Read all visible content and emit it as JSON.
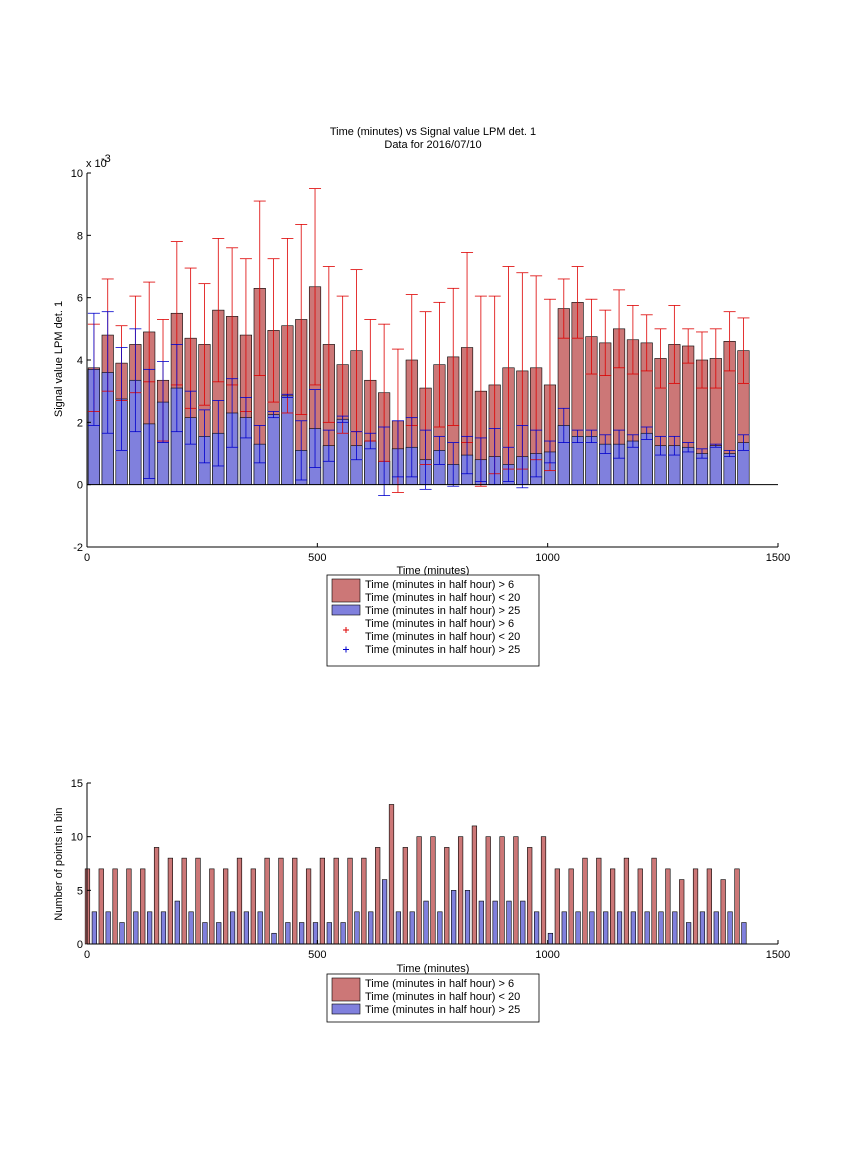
{
  "colors": {
    "red_bar": "#cc7777",
    "blue_bar": "#8080dd",
    "red_err": "#dd0000",
    "blue_err": "#0000cc",
    "axis": "#000000"
  },
  "chart_data": [
    {
      "type": "bar",
      "title": "Time (minutes) vs Signal value LPM det. 1",
      "subtitle": "Data for 2016/07/10",
      "xlabel": "Time (minutes)",
      "ylabel": "Signal value LPM det. 1",
      "exponent_label": "x 10",
      "exponent_power": "-3",
      "xlim": [
        0,
        1500
      ],
      "ylim": [
        -2,
        10
      ],
      "xticks": [
        0,
        500,
        1000,
        1500
      ],
      "yticks": [
        -2,
        0,
        2,
        4,
        6,
        8,
        10
      ],
      "grid": false,
      "legend_position": "below",
      "legend": [
        {
          "label": "Time (minutes in half hour) > 6\nTime (minutes in half hour) < 20",
          "kind": "bar",
          "color": "#cc7777"
        },
        {
          "label": "Time (minutes in half hour) > 25",
          "kind": "bar",
          "color": "#8080dd"
        },
        {
          "label": "Time (minutes in half hour) > 6\nTime (minutes in half hour) < 20",
          "kind": "marker",
          "color": "#dd0000"
        },
        {
          "label": "Time (minutes in half hour) > 25",
          "kind": "marker",
          "color": "#0000cc"
        }
      ],
      "x": [
        15,
        45,
        75,
        105,
        135,
        165,
        195,
        225,
        255,
        285,
        315,
        345,
        375,
        405,
        435,
        465,
        495,
        525,
        555,
        585,
        615,
        645,
        675,
        705,
        735,
        765,
        795,
        825,
        855,
        885,
        915,
        945,
        975,
        1005,
        1035,
        1065,
        1095,
        1125,
        1155,
        1185,
        1215,
        1245,
        1275,
        1305,
        1335,
        1365,
        1395,
        1425
      ],
      "series": [
        {
          "name": "Time (minutes in half hour) > 6\nTime (minutes in half hour) < 20",
          "values": [
            3.75,
            4.8,
            3.9,
            4.5,
            4.9,
            3.35,
            5.5,
            4.7,
            4.5,
            5.6,
            5.4,
            4.8,
            6.3,
            4.95,
            5.1,
            5.3,
            6.35,
            4.5,
            3.85,
            4.3,
            3.35,
            2.95,
            2.05,
            4.0,
            3.1,
            3.85,
            4.1,
            4.4,
            3.0,
            3.2,
            3.75,
            3.65,
            3.75,
            3.2,
            5.65,
            5.85,
            4.75,
            4.55,
            5.0,
            4.65,
            4.55,
            4.05,
            4.5,
            4.45,
            4.0,
            4.05,
            4.6,
            4.3
          ],
          "errors": [
            1.4,
            1.8,
            1.2,
            1.55,
            1.6,
            1.95,
            2.3,
            2.25,
            1.95,
            2.3,
            2.2,
            2.45,
            2.8,
            2.3,
            2.8,
            3.05,
            3.15,
            2.5,
            2.2,
            2.6,
            1.95,
            2.2,
            2.3,
            2.1,
            2.45,
            2.0,
            2.2,
            3.05,
            3.05,
            2.85,
            3.25,
            3.15,
            2.95,
            2.75,
            0.95,
            1.15,
            1.2,
            1.05,
            1.25,
            1.1,
            0.9,
            0.95,
            1.25,
            0.55,
            0.9,
            0.95,
            0.95,
            1.05
          ]
        },
        {
          "name": "Time (minutes in half hour) > 25",
          "values": [
            3.7,
            3.6,
            2.75,
            3.35,
            1.95,
            2.65,
            3.1,
            2.15,
            1.55,
            1.65,
            2.3,
            2.15,
            1.3,
            2.25,
            2.85,
            1.1,
            1.8,
            1.25,
            2.1,
            1.25,
            1.4,
            0.75,
            1.15,
            1.2,
            0.8,
            1.1,
            0.65,
            0.95,
            0.8,
            0.9,
            0.65,
            0.9,
            1.0,
            1.05,
            1.9,
            1.55,
            1.55,
            1.3,
            1.3,
            1.4,
            1.65,
            1.25,
            1.25,
            1.2,
            1.0,
            1.25,
            1.0,
            1.35
          ],
          "errors": [
            1.8,
            1.95,
            1.65,
            1.65,
            1.75,
            1.3,
            1.4,
            0.85,
            0.85,
            1.05,
            1.1,
            0.65,
            0.6,
            0.1,
            0.05,
            0.95,
            1.25,
            0.5,
            0.1,
            0.45,
            0.25,
            1.1,
            0.9,
            0.95,
            0.95,
            0.45,
            0.7,
            0.6,
            0.7,
            0.9,
            0.55,
            1.0,
            0.75,
            0.35,
            0.55,
            0.2,
            0.2,
            0.3,
            0.45,
            0.2,
            0.2,
            0.3,
            0.3,
            0.15,
            0.15,
            0.05,
            0.1,
            0.25
          ]
        }
      ]
    },
    {
      "type": "bar",
      "title": "",
      "xlabel": "Time (minutes)",
      "ylabel": "Number of points in bin",
      "xlim": [
        0,
        1500
      ],
      "ylim": [
        0,
        15
      ],
      "xticks": [
        0,
        500,
        1000,
        1500
      ],
      "yticks": [
        0,
        5,
        10,
        15
      ],
      "grid": false,
      "legend_position": "below",
      "legend": [
        {
          "label": "Time (minutes in half hour) > 6\nTime (minutes in half hour) < 20",
          "kind": "bar",
          "color": "#cc7777"
        },
        {
          "label": "Time (minutes in half hour) > 25",
          "kind": "bar",
          "color": "#8080dd"
        }
      ],
      "x": [
        15,
        45,
        75,
        105,
        135,
        165,
        195,
        225,
        255,
        285,
        315,
        345,
        375,
        405,
        435,
        465,
        495,
        525,
        555,
        585,
        615,
        645,
        675,
        705,
        735,
        765,
        795,
        825,
        855,
        885,
        915,
        945,
        975,
        1005,
        1035,
        1065,
        1095,
        1125,
        1155,
        1185,
        1215,
        1245,
        1275,
        1305,
        1335,
        1365,
        1395,
        1425
      ],
      "series": [
        {
          "name": "Time (minutes in half hour) > 6\nTime (minutes in half hour) < 20",
          "values": [
            7,
            7,
            7,
            7,
            7,
            9,
            8,
            8,
            8,
            7,
            7,
            8,
            7,
            8,
            8,
            8,
            7,
            8,
            8,
            8,
            8,
            9,
            13,
            9,
            10,
            10,
            9,
            10,
            11,
            10,
            10,
            10,
            9,
            10,
            7,
            7,
            8,
            8,
            7,
            8,
            7,
            8,
            7,
            6,
            7,
            7,
            6,
            7
          ]
        },
        {
          "name": "Time (minutes in half hour) > 25",
          "values": [
            3,
            3,
            2,
            3,
            3,
            3,
            4,
            3,
            2,
            2,
            3,
            3,
            3,
            1,
            2,
            2,
            2,
            2,
            2,
            3,
            3,
            6,
            3,
            3,
            4,
            3,
            5,
            5,
            4,
            4,
            4,
            4,
            3,
            1,
            3,
            3,
            3,
            3,
            3,
            3,
            3,
            3,
            3,
            2,
            3,
            3,
            3,
            2
          ]
        }
      ]
    }
  ]
}
